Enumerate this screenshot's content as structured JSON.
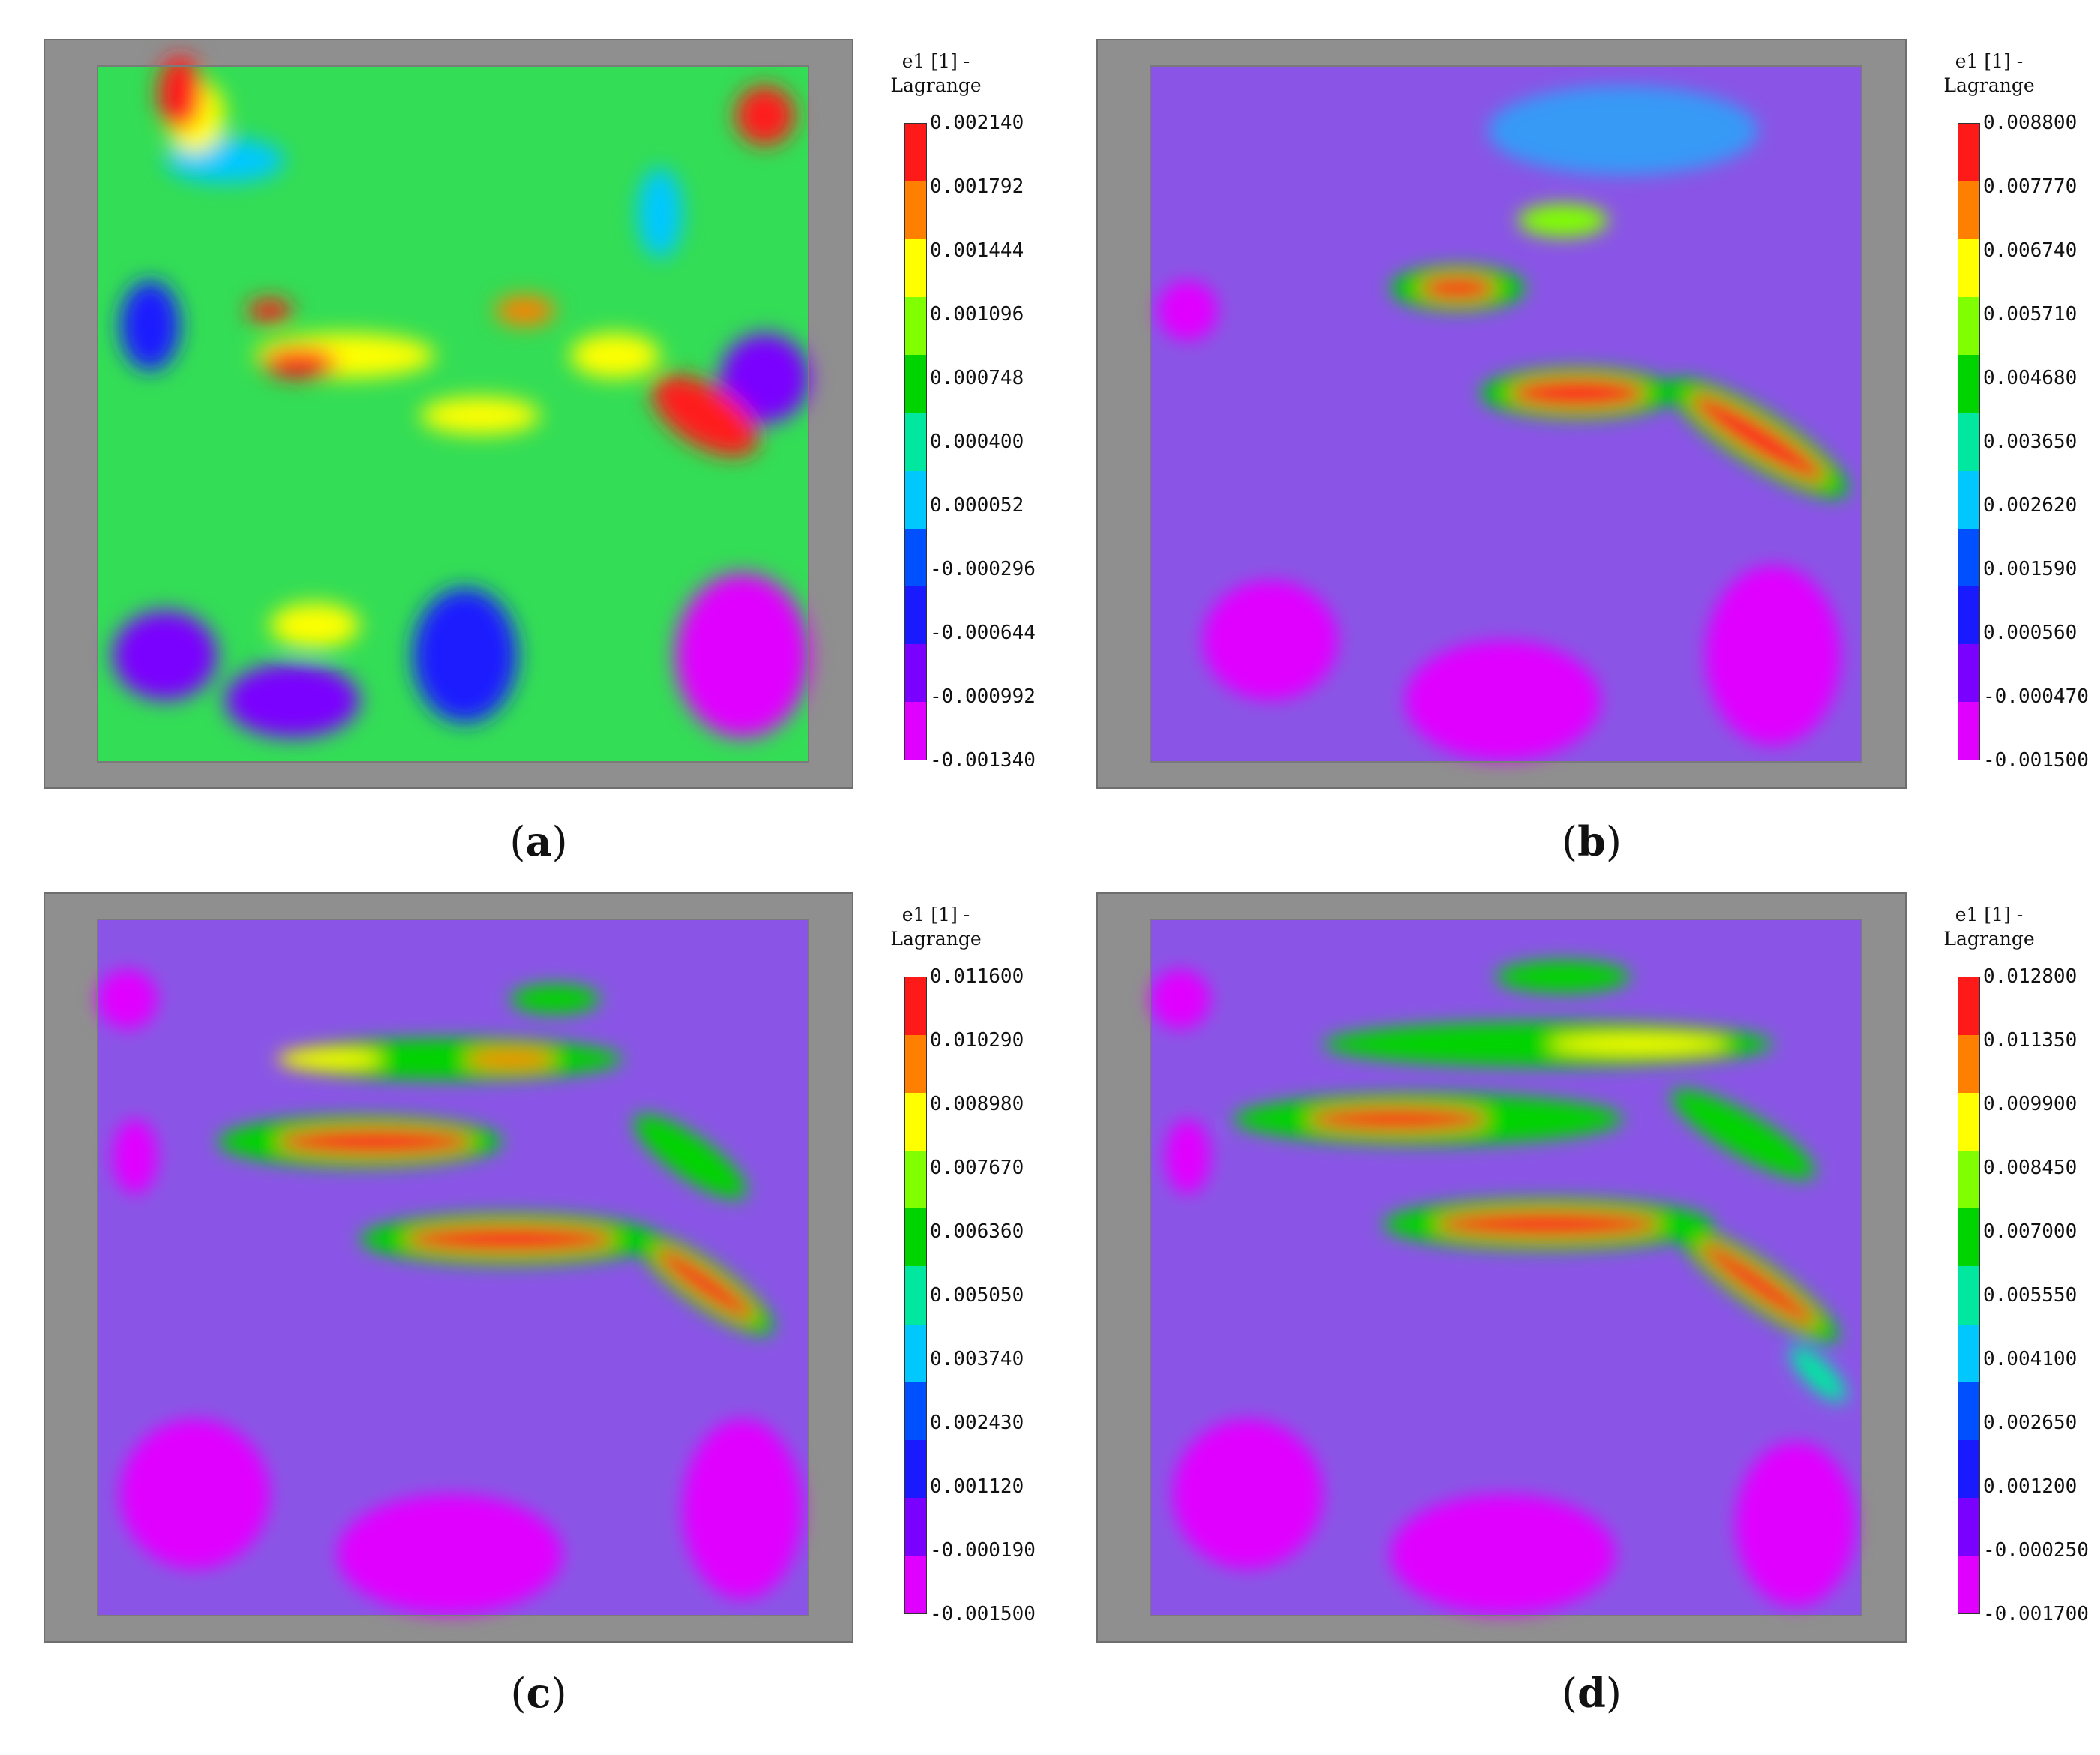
{
  "colors": {
    "scale_top_to_bottom": [
      "#ff1a1a",
      "#ff8000",
      "#ffff00",
      "#80ff00",
      "#00d400",
      "#00e8a0",
      "#00c8ff",
      "#0050ff",
      "#1a1aff",
      "#7a00ff",
      "#e000ff"
    ],
    "overlay_background": "#8a55e6",
    "photo_border": "#8f8f8f"
  },
  "panels": [
    {
      "id": "a",
      "caption_label": "a",
      "legend_title": [
        "e1 [1] -",
        "Lagrange"
      ],
      "ticks": [
        "0.002140",
        "0.001792",
        "0.001444",
        "0.001096",
        "0.000748",
        "0.000400",
        "0.000052",
        "-0.000296",
        "-0.000644",
        "-0.000992",
        "-0.001340"
      ]
    },
    {
      "id": "b",
      "caption_label": "b",
      "legend_title": [
        "e1 [1] -",
        "Lagrange"
      ],
      "ticks": [
        "0.008800",
        "0.007770",
        "0.006740",
        "0.005710",
        "0.004680",
        "0.003650",
        "0.002620",
        "0.001590",
        "0.000560",
        "-0.000470",
        "-0.001500"
      ]
    },
    {
      "id": "c",
      "caption_label": "c",
      "legend_title": [
        "e1 [1] -",
        "Lagrange"
      ],
      "ticks": [
        "0.011600",
        "0.010290",
        "0.008980",
        "0.007670",
        "0.006360",
        "0.005050",
        "0.003740",
        "0.002430",
        "0.001120",
        "-0.000190",
        "-0.001500"
      ]
    },
    {
      "id": "d",
      "caption_label": "d",
      "legend_title": [
        "e1 [1] -",
        "Lagrange"
      ],
      "ticks": [
        "0.012800",
        "0.011350",
        "0.009900",
        "0.008450",
        "0.007000",
        "0.005550",
        "0.004100",
        "0.002650",
        "0.001200",
        "-0.000250",
        "-0.001700"
      ]
    }
  ]
}
